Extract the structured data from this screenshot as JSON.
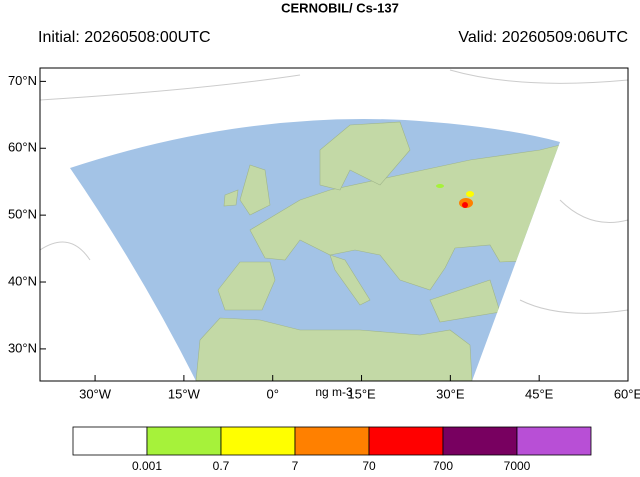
{
  "map": {
    "title": "CERNOBIL/ Cs-137",
    "initial": "Initial: 20260508:00UTC",
    "valid": "Valid: 20260509:06UTC",
    "xlim": [
      -39.3,
      60
    ],
    "ylim": [
      25.2,
      72
    ],
    "xticks": [
      {
        "value": -30,
        "label": "30°W"
      },
      {
        "value": -15,
        "label": "15°W"
      },
      {
        "value": 0,
        "label": "0°"
      },
      {
        "value": 15,
        "label": "15°E"
      },
      {
        "value": 30,
        "label": "30°E"
      },
      {
        "value": 45,
        "label": "45°E"
      },
      {
        "value": 60,
        "label": "60°E"
      }
    ],
    "yticks": [
      {
        "value": 30,
        "label": "30°N"
      },
      {
        "value": 40,
        "label": "40°N"
      },
      {
        "value": 50,
        "label": "50°N"
      },
      {
        "value": 60,
        "label": "60°N"
      },
      {
        "value": 70,
        "label": "70°N"
      }
    ],
    "colorbar": {
      "unit": "ng m-3",
      "colors": [
        "#ffffff",
        "#a6f23a",
        "#ffff00",
        "#ff8000",
        "#ff0000",
        "#780060",
        "#b84fd6"
      ],
      "levels": [
        0.001,
        0.7,
        7,
        70,
        700,
        7000
      ]
    }
  }
}
